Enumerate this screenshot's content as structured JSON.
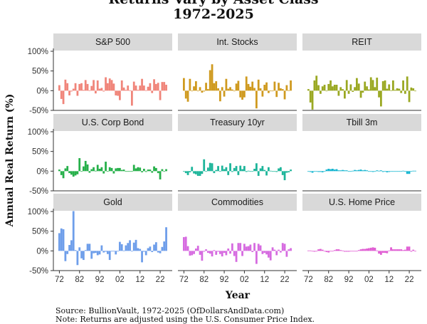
{
  "title_line1": "Returns Vary by Asset Class",
  "title_line2": "1972-2025",
  "source_line": "Source: BullionVault, 1972-2025 (OfDollarsAndData.com)",
  "note_line": "Note: Returns are adjusted using the U.S. Consumer Price Index.",
  "chart_data": {
    "type": "bar",
    "xlabel": "Year",
    "ylabel": "Annual Real Return (%)",
    "x_ticks": [
      "72",
      "82",
      "92",
      "02",
      "12",
      "22"
    ],
    "y_ticks": [
      "100%",
      "50%",
      "0%",
      "-50%"
    ],
    "ylim": [
      -50,
      100
    ],
    "x_range": [
      1972,
      2025
    ],
    "grid": false,
    "panels": [
      {
        "name": "S&P 500",
        "color": "#F0857A",
        "values": [
          14,
          -21,
          -34,
          28,
          19,
          -12,
          -2,
          5,
          19,
          -13,
          17,
          19,
          2,
          27,
          17,
          1,
          12,
          27,
          -7,
          26,
          5,
          7,
          -2,
          34,
          19,
          31,
          27,
          18,
          -12,
          -13,
          -24,
          26,
          8,
          2,
          13,
          1,
          -38,
          23,
          13,
          2,
          13,
          30,
          13,
          1,
          10,
          19,
          -6,
          29,
          17,
          20,
          -24,
          22,
          22,
          15
        ]
      },
      {
        "name": "Int. Stocks",
        "color": "#CF9A1F",
        "values": [
          32,
          -20,
          -28,
          30,
          0,
          11,
          24,
          0,
          9,
          -5,
          -2,
          20,
          4,
          52,
          67,
          19,
          24,
          6,
          -27,
          9,
          -15,
          30,
          5,
          9,
          3,
          0,
          18,
          25,
          -17,
          -23,
          -17,
          36,
          17,
          10,
          23,
          7,
          -45,
          28,
          6,
          -15,
          15,
          21,
          -6,
          -1,
          -1,
          23,
          -16,
          20,
          6,
          4,
          -22,
          14,
          1,
          26
        ]
      },
      {
        "name": "REIT",
        "color": "#9AA822",
        "values": [
          4,
          -30,
          -48,
          26,
          38,
          14,
          -8,
          11,
          15,
          -1,
          17,
          26,
          11,
          15,
          15,
          -13,
          9,
          4,
          -20,
          27,
          -8,
          16,
          -3,
          9,
          32,
          18,
          -18,
          -5,
          23,
          11,
          3,
          34,
          27,
          9,
          33,
          -17,
          -40,
          24,
          26,
          5,
          16,
          1,
          26,
          2,
          6,
          5,
          -6,
          26,
          -8,
          36,
          -29,
          8,
          6,
          0
        ]
      },
      {
        "name": "U.S. Corp Bond",
        "color": "#26B04A",
        "values": [
          4,
          -10,
          -18,
          7,
          13,
          -5,
          -9,
          -14,
          -11,
          -8,
          33,
          0,
          12,
          26,
          17,
          -4,
          5,
          10,
          1,
          16,
          6,
          10,
          -6,
          24,
          -1,
          10,
          8,
          -6,
          7,
          8,
          8,
          3,
          4,
          -1,
          0,
          0,
          0,
          16,
          7,
          10,
          9,
          -3,
          6,
          -2,
          4,
          4,
          -4,
          12,
          8,
          -5,
          -21,
          5,
          -1,
          5
        ]
      },
      {
        "name": "Treasury 10yr",
        "color": "#1DB59A",
        "values": [
          0,
          -5,
          -10,
          -3,
          11,
          -6,
          -8,
          -12,
          -12,
          -7,
          30,
          0,
          9,
          21,
          20,
          -5,
          3,
          13,
          0,
          14,
          5,
          10,
          -10,
          20,
          -2,
          8,
          13,
          -10,
          14,
          5,
          13,
          -2,
          1,
          -1,
          -1,
          6,
          20,
          -12,
          7,
          13,
          3,
          -11,
          10,
          1,
          -1,
          0,
          -2,
          7,
          10,
          -10,
          -23,
          -4,
          -3,
          4
        ]
      },
      {
        "name": "Tbill 3m",
        "color": "#16B5D0",
        "values": [
          0,
          -2,
          -4,
          -1,
          0,
          -2,
          -2,
          -3,
          -1,
          4,
          6,
          5,
          6,
          4,
          5,
          2,
          2,
          3,
          2,
          2,
          0,
          0,
          1,
          3,
          2,
          3,
          4,
          2,
          3,
          2,
          0,
          -1,
          -2,
          0,
          2,
          1,
          2,
          -2,
          -1,
          -3,
          -2,
          -1,
          0,
          0,
          -1,
          -1,
          0,
          1,
          -1,
          -7,
          -7,
          0,
          1,
          1
        ]
      },
      {
        "name": "Gold",
        "color": "#6E9EEA",
        "values": [
          45,
          57,
          55,
          -26,
          -8,
          15,
          27,
          101,
          2,
          -36,
          9,
          -19,
          -23,
          2,
          18,
          18,
          -20,
          -6,
          -5,
          -11,
          -9,
          14,
          -4,
          -2,
          -8,
          -23,
          -1,
          -1,
          -9,
          0,
          23,
          17,
          1,
          14,
          20,
          27,
          0,
          21,
          28,
          7,
          5,
          -29,
          -2,
          -11,
          7,
          11,
          -3,
          16,
          22,
          -4,
          -6,
          10,
          24,
          60
        ]
      },
      {
        "name": "Commodities",
        "color": "#D66BE0",
        "values": [
          35,
          36,
          12,
          -12,
          -11,
          -8,
          6,
          13,
          -10,
          -25,
          -2,
          4,
          -5,
          -7,
          -14,
          2,
          -10,
          -2,
          -8,
          -14,
          -5,
          -11,
          6,
          -7,
          19,
          -13,
          -28,
          20,
          20,
          -13,
          18,
          11,
          12,
          16,
          -3,
          20,
          -33,
          18,
          14,
          -8,
          -5,
          -9,
          -17,
          -24,
          9,
          3,
          -11,
          3,
          -4,
          20,
          18,
          -15,
          4,
          7
        ]
      },
      {
        "name": "U.S. Home Price",
        "color": "#E05ED3",
        "values": [
          1,
          1,
          -1,
          -2,
          -1,
          4,
          5,
          3,
          -1,
          -3,
          -4,
          0,
          0,
          2,
          4,
          4,
          2,
          1,
          -2,
          -2,
          -2,
          -1,
          0,
          -1,
          0,
          2,
          4,
          5,
          5,
          6,
          7,
          8,
          9,
          8,
          1,
          -7,
          -10,
          -5,
          -5,
          -6,
          1,
          9,
          4,
          4,
          4,
          4,
          4,
          2,
          3,
          11,
          11,
          -2,
          3,
          0
        ]
      }
    ]
  }
}
